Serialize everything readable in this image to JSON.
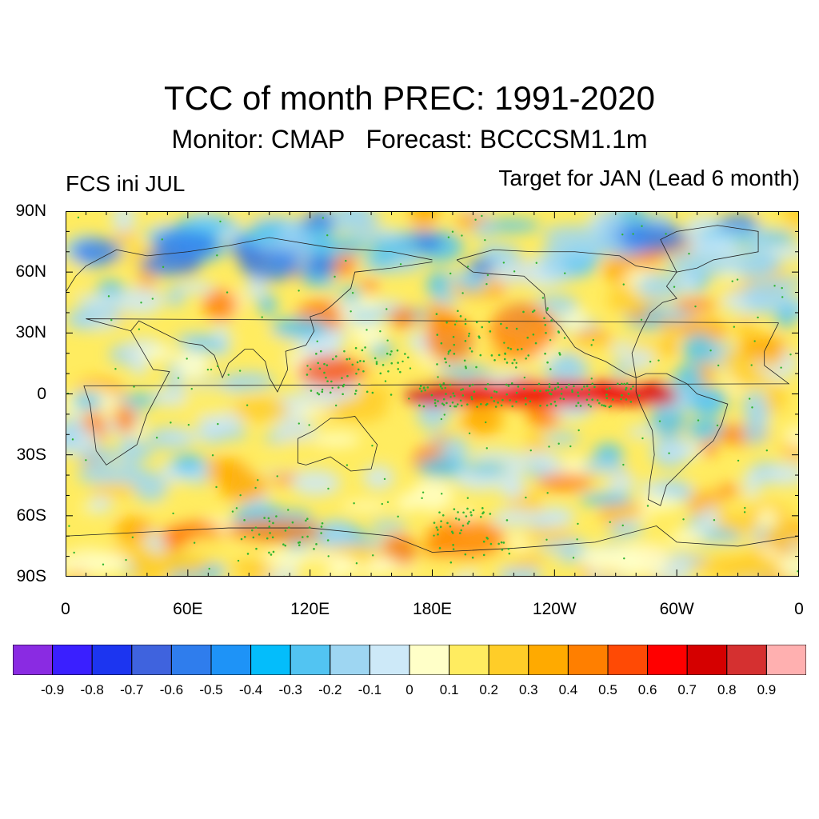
{
  "title": "TCC of month PREC: 1991-2020",
  "subtitle": "Monitor: CMAP   Forecast: BCCCSM1.1m",
  "left_label": "FCS ini JUL",
  "right_label": "Target for JAN (Lead 6 month)",
  "lat_labels": [
    "90N",
    "60N",
    "30N",
    "0",
    "30S",
    "60S",
    "90S"
  ],
  "lon_labels": [
    "0",
    "60E",
    "120E",
    "180E",
    "120W",
    "60W",
    "0"
  ],
  "colorbar": {
    "colors": [
      "#8a2be2",
      "#3a1fff",
      "#1c35f0",
      "#3f63de",
      "#2f7ded",
      "#1e93f7",
      "#04bdfb",
      "#52c4f2",
      "#9ed6f2",
      "#cde9f8",
      "#ffffc8",
      "#ffec60",
      "#ffcd28",
      "#ffaa00",
      "#ff7f00",
      "#ff4a05",
      "#ff0000",
      "#d50000",
      "#d53030",
      "#ffb0b0"
    ],
    "labels": [
      "-0.9",
      "-0.8",
      "-0.7",
      "-0.6",
      "-0.5",
      "-0.4",
      "-0.3",
      "-0.2",
      "-0.1",
      "0",
      "0.1",
      "0.2",
      "0.3",
      "0.4",
      "0.5",
      "0.6",
      "0.7",
      "0.8",
      "0.9"
    ]
  }
}
